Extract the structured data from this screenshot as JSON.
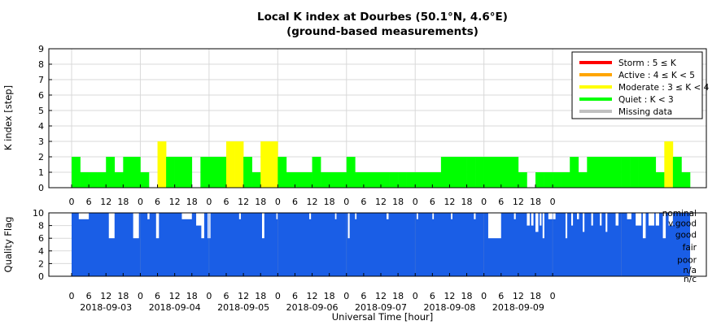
{
  "chart_data": [
    {
      "type": "bar",
      "title": "Local K index at Dourbes (50.1°N, 4.6°E)",
      "subtitle": "(ground-based measurements)",
      "ylabel": "K index [step]",
      "ylim": [
        0,
        9
      ],
      "yticks": [
        "0",
        "1",
        "2",
        "3",
        "4",
        "5",
        "6",
        "7",
        "8",
        "9"
      ],
      "grid": true,
      "legend_position": "top-right",
      "legend": [
        {
          "label": "Storm : 5 ≤ K",
          "color": "#ff0000"
        },
        {
          "label": "Active : 4 ≤ K < 5",
          "color": "#ffa500"
        },
        {
          "label": "Moderate : 3 ≤ K < 4",
          "color": "#ffff00"
        },
        {
          "label": "Quiet : K < 3",
          "color": "#00ff00"
        },
        {
          "label": "Missing data",
          "color": "#c0c0c0"
        }
      ],
      "x_ticks": [
        "0",
        "6",
        "12",
        "18",
        "0",
        "6",
        "12",
        "18",
        "0",
        "6",
        "12",
        "18",
        "0",
        "6",
        "12",
        "18",
        "0",
        "6",
        "12",
        "18",
        "0",
        "6",
        "12",
        "18",
        "0",
        "6",
        "12",
        "18",
        "0"
      ],
      "intervals_start": "2018-09-03 00:00 UT",
      "interval_hours": 3,
      "values": [
        2,
        1,
        1,
        1,
        2,
        1,
        2,
        2,
        1,
        0,
        3,
        2,
        2,
        2,
        0,
        2,
        2,
        2,
        3,
        3,
        2,
        1,
        3,
        3,
        2,
        1,
        1,
        1,
        2,
        1,
        1,
        1,
        2,
        1,
        1,
        1,
        1,
        1,
        1,
        1,
        1,
        1,
        1,
        2,
        2,
        2,
        2,
        2,
        2,
        2,
        2,
        2,
        1,
        0,
        1,
        1,
        1,
        1,
        2,
        1,
        2,
        2,
        2,
        2,
        2,
        2,
        2,
        2,
        1,
        3,
        2,
        1
      ]
    },
    {
      "type": "bar",
      "ylabel": "Quality Flag",
      "ylim": [
        0,
        10
      ],
      "yticks": [
        "0",
        "2",
        "4",
        "6",
        "8",
        "10"
      ],
      "xlabel": "Universal Time [hour]",
      "dates": [
        "2018-09-03",
        "2018-09-04",
        "2018-09-05",
        "2018-09-06",
        "2018-09-07",
        "2018-09-08",
        "2018-09-09"
      ],
      "quality_levels": [
        "nominal",
        "v.good",
        "good",
        "fair",
        "poor",
        "n/a",
        "n/c"
      ],
      "fill_color": "#1a5ee6",
      "notches": [
        {
          "hour": 2.5,
          "hours": 3.5,
          "value": 9
        },
        {
          "hour": 13,
          "hours": 2,
          "value": 6
        },
        {
          "hour": 21.5,
          "hours": 2,
          "value": 6
        },
        {
          "hour": 26.5,
          "hours": 0.7,
          "value": 9
        },
        {
          "hour": 29.5,
          "hours": 1,
          "value": 6
        },
        {
          "hour": 38.5,
          "hours": 3.5,
          "value": 9
        },
        {
          "hour": 43.5,
          "hours": 2.5,
          "value": 8
        },
        {
          "hour": 45.3,
          "hours": 1,
          "value": 6
        },
        {
          "hour": 47.5,
          "hours": 1,
          "value": 6
        },
        {
          "hour": 58.5,
          "hours": 0.6,
          "value": 9
        },
        {
          "hour": 66.5,
          "hours": 0.8,
          "value": 6
        },
        {
          "hour": 71.5,
          "hours": 0.6,
          "value": 9
        },
        {
          "hour": 83,
          "hours": 0.6,
          "value": 9
        },
        {
          "hour": 92,
          "hours": 0.5,
          "value": 9
        },
        {
          "hour": 96.5,
          "hours": 0.6,
          "value": 6
        },
        {
          "hour": 99,
          "hours": 0.5,
          "value": 9
        },
        {
          "hour": 110,
          "hours": 0.7,
          "value": 9
        },
        {
          "hour": 120.5,
          "hours": 0.5,
          "value": 9
        },
        {
          "hour": 126,
          "hours": 0.5,
          "value": 9
        },
        {
          "hour": 132.5,
          "hours": 0.5,
          "value": 9
        },
        {
          "hour": 140.5,
          "hours": 0.6,
          "value": 9
        },
        {
          "hour": 145.5,
          "hours": 4.5,
          "value": 6
        },
        {
          "hour": 154.5,
          "hours": 0.6,
          "value": 9
        },
        {
          "hour": 159,
          "hours": 1,
          "value": 8
        },
        {
          "hour": 160.5,
          "hours": 0.8,
          "value": 8
        },
        {
          "hour": 162,
          "hours": 1,
          "value": 7
        },
        {
          "hour": 163.5,
          "hours": 0.6,
          "value": 8
        },
        {
          "hour": 164.5,
          "hours": 0.6,
          "value": 6
        },
        {
          "hour": 166.5,
          "hours": 2.5,
          "value": 9
        },
        {
          "hour": 172.5,
          "hours": 0.6,
          "value": 6
        },
        {
          "hour": 174.5,
          "hours": 0.6,
          "value": 8
        },
        {
          "hour": 176.5,
          "hours": 0.7,
          "value": 9
        },
        {
          "hour": 178.5,
          "hours": 0.6,
          "value": 7
        },
        {
          "hour": 181.5,
          "hours": 0.6,
          "value": 8
        },
        {
          "hour": 184.5,
          "hours": 0.6,
          "value": 8
        },
        {
          "hour": 186.5,
          "hours": 0.6,
          "value": 7
        },
        {
          "hour": 190,
          "hours": 1,
          "value": 8
        },
        {
          "hour": 194,
          "hours": 1.5,
          "value": 9
        },
        {
          "hour": 197,
          "hours": 2,
          "value": 8
        },
        {
          "hour": 199.5,
          "hours": 1,
          "value": 6
        },
        {
          "hour": 201.5,
          "hours": 2,
          "value": 8
        },
        {
          "hour": 204,
          "hours": 1.2,
          "value": 8
        },
        {
          "hour": 206.5,
          "hours": 1,
          "value": 6
        },
        {
          "hour": 208.5,
          "hours": 1.5,
          "value": 8
        }
      ],
      "data_end_hour": 216
    }
  ]
}
